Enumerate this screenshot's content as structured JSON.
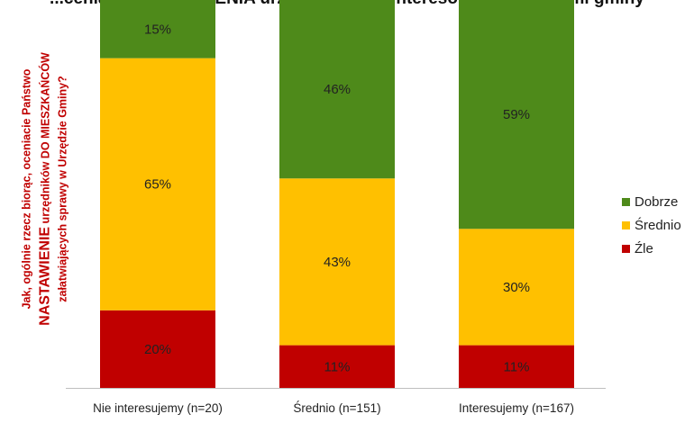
{
  "chart_data": {
    "type": "bar",
    "stacked": true,
    "title": "...cenianie NASTAWIENIA urzędników a zainteresowanie sprawami gminy",
    "ylabel": {
      "line1": "Jak, ogólnie rzecz biorąc, oceniacie Państwo",
      "line2_big": "NASTAWIENIE",
      "line2_rest": "urzędników DO MIESZKAŃCÓW",
      "line3": "załatwiających sprawy w Urzędzie Gminy?"
    },
    "categories": [
      "Nie interesujemy (n=20)",
      "Średnio (n=151)",
      "Interesujemy (n=167)"
    ],
    "series": [
      {
        "name": "Źle",
        "color": "#c00000",
        "values": [
          20,
          11,
          11
        ],
        "labels": [
          "20%",
          "11%",
          "11%"
        ]
      },
      {
        "name": "Średnio",
        "color": "#ffc000",
        "values": [
          65,
          43,
          30
        ],
        "labels": [
          "65%",
          "43%",
          "30%"
        ]
      },
      {
        "name": "Dobrze",
        "color": "#4e8a1a",
        "values": [
          15,
          46,
          59
        ],
        "labels": [
          "15%",
          "46%",
          "59%"
        ]
      }
    ],
    "legend_order": [
      "Dobrze",
      "Średnio",
      "Źle"
    ],
    "legend_position": "right",
    "ylim": [
      0,
      100
    ]
  }
}
